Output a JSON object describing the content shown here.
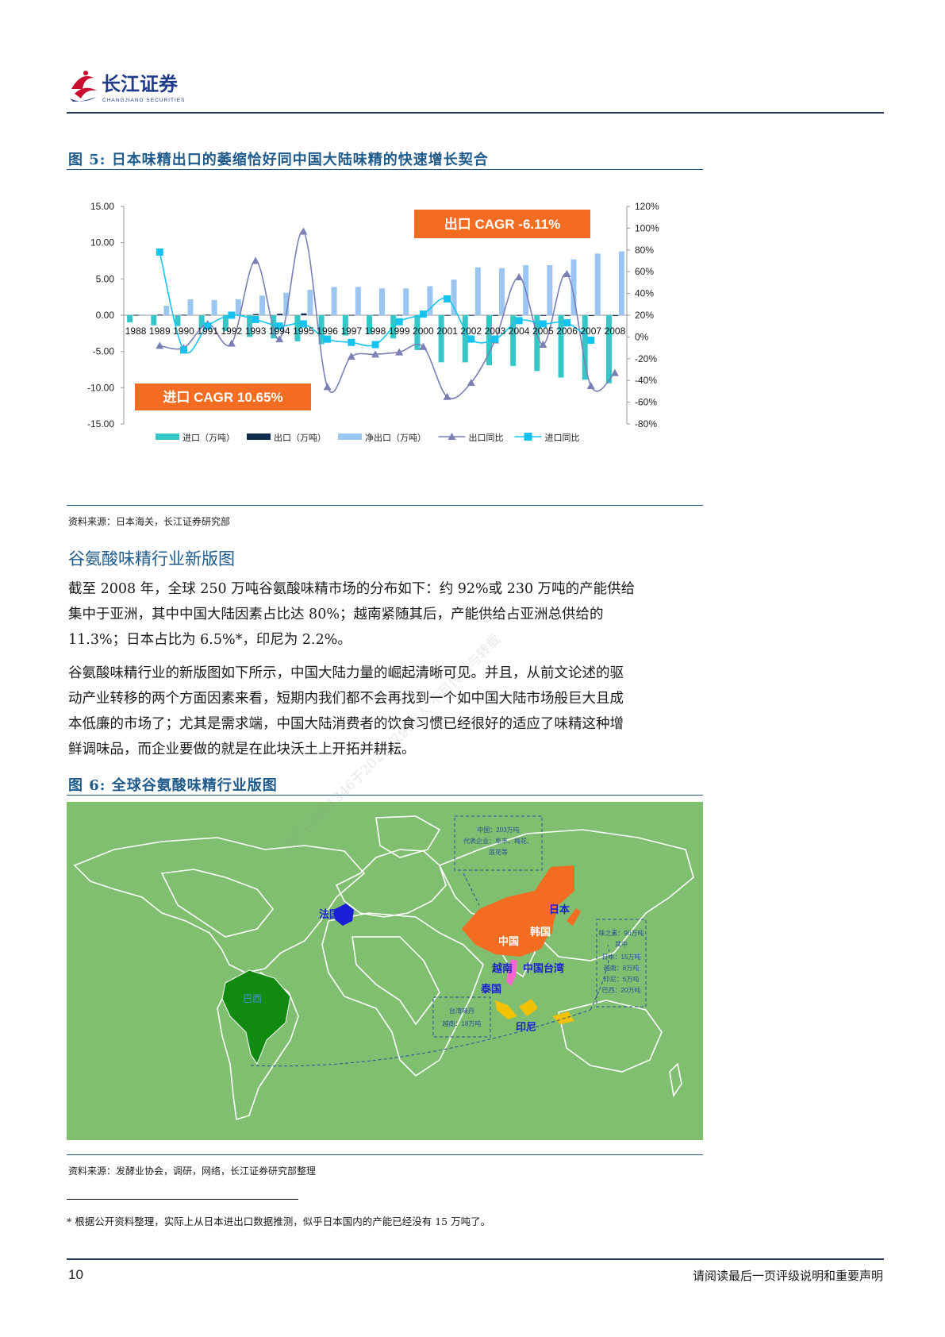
{
  "header": {
    "brand_cn": "长江证券",
    "brand_en": "CHANGJIANG SECURITIES"
  },
  "figure5": {
    "title": "图 5:  日本味精出口的萎缩恰好同中国大陆味精的快速增长契合",
    "source": "资料来源：日本海关，长江证券研究部",
    "export_callout": "出口 CAGR -6.11%",
    "import_callout": "进口 CAGR 10.65%"
  },
  "chart_data": {
    "type": "bar",
    "categories": [
      "1988",
      "1989",
      "1990",
      "1991",
      "1992",
      "1993",
      "1994",
      "1995",
      "1996",
      "1997",
      "1998",
      "1999",
      "2000",
      "2001",
      "2002",
      "2003",
      "2004",
      "2005",
      "2006",
      "2007",
      "2008"
    ],
    "series": [
      {
        "name": "进口（万吨）",
        "type": "bar",
        "axis": "left",
        "color": "#35c6c8",
        "values": [
          -1.0,
          -1.4,
          -1.5,
          -1.7,
          -2.2,
          -3.0,
          -3.2,
          -3.6,
          -4.0,
          -2.8,
          -2.6,
          -3.2,
          -4.8,
          -6.5,
          -6.5,
          -6.9,
          -7.0,
          -7.7,
          -8.6,
          -8.9,
          -9.4
        ]
      },
      {
        "name": "出口（万吨）",
        "type": "bar",
        "axis": "left",
        "color": "#0f2a4d",
        "values": [
          0.05,
          0.08,
          0.07,
          0.08,
          0.1,
          0.15,
          0.2,
          0.25,
          0.06,
          0.05,
          0.05,
          0.05,
          0.04,
          0.03,
          0.03,
          0.02,
          0.03,
          0.02,
          0.01,
          0.01,
          0.01
        ]
      },
      {
        "name": "净出口（万吨）",
        "type": "bar",
        "axis": "left",
        "color": "#9cc6f2",
        "values": [
          0.1,
          1.3,
          2.2,
          2.1,
          2.2,
          2.7,
          3.1,
          3.5,
          3.9,
          3.9,
          3.7,
          3.7,
          4.0,
          4.9,
          6.6,
          6.5,
          6.9,
          6.9,
          7.7,
          8.5,
          8.8
        ]
      },
      {
        "name": "出口同比",
        "type": "line",
        "axis": "right",
        "color": "#7a7fb5",
        "marker": "triangle",
        "values": [
          null,
          -8,
          -10,
          12,
          -6,
          70,
          -2,
          97,
          -46,
          -18,
          -16,
          -14,
          -9,
          -55,
          -42,
          -3,
          55,
          -7,
          58,
          -45,
          -33
        ]
      },
      {
        "name": "进口同比",
        "type": "line",
        "axis": "right",
        "color": "#14c3ef",
        "marker": "square",
        "values": [
          null,
          78,
          -12,
          10,
          20,
          16,
          10,
          12,
          -2,
          -5,
          -7,
          14,
          21,
          35,
          -2,
          -2,
          15,
          12,
          13,
          -3,
          null
        ]
      }
    ],
    "y_left": {
      "ticks": [
        "15.00",
        "10.00",
        "5.00",
        "0.00",
        "-5.00",
        "-10.00",
        "-15.00"
      ],
      "min": -15,
      "max": 15
    },
    "y_right": {
      "ticks": [
        "120%",
        "100%",
        "80%",
        "60%",
        "40%",
        "20%",
        "0%",
        "-20%",
        "-40%",
        "-60%",
        "-80%"
      ],
      "min": -80,
      "max": 120
    },
    "legend": [
      {
        "label": "进口（万吨）",
        "color": "#35c6c8",
        "kind": "bar"
      },
      {
        "label": "出口（万吨）",
        "color": "#0f2a4d",
        "kind": "bar"
      },
      {
        "label": "净出口（万吨）",
        "color": "#9cc6f2",
        "kind": "bar"
      },
      {
        "label": "出口同比",
        "color": "#7a7fb5",
        "kind": "triangle"
      },
      {
        "label": "进口同比",
        "color": "#14c3ef",
        "kind": "square"
      }
    ],
    "legend_position": "bottom"
  },
  "section": {
    "title": "谷氨酸味精行业新版图",
    "para1_lines": [
      "截至 2008 年，全球 250 万吨谷氨酸味精市场的分布如下：约 92%或 230 万吨的产能供给",
      "集中于亚洲，其中中国大陆因素占比达 80%；越南紧随其后，产能供给占亚洲总供给的",
      "11.3%；日本占比为 6.5%*，印尼为 2.2%。"
    ],
    "para2_lines": [
      "谷氨酸味精行业的新版图如下所示，中国大陆力量的崛起清晰可见。并且，从前文论述的驱",
      "动产业转移的两个方面因素来看，短期内我们都不会再找到一个如中国大陆市场般巨大且成",
      "本低廉的市场了；尤其是需求端，中国大陆消费者的饮食习惯已经很好的适应了味精这种增",
      "鲜调味品，而企业要做的就是在此块沃土上开拓并耕耘。"
    ]
  },
  "figure6": {
    "title": "图 6:  全球谷氨酸味精行业版图",
    "source": "资料来源：发酵业协会，调研，网络，长江证券研究部整理",
    "labels": {
      "france": "法国",
      "brazil": "巴西",
      "china": "中国",
      "korea": "韩国",
      "japan": "日本",
      "vietnam": "越南",
      "taiwan": "中国台湾",
      "thailand": "泰国",
      "indonesia": "印尼"
    },
    "china_box_lines": [
      "中国：203万吨",
      "代表企业：阜丰、梅花、",
      "莲花等"
    ],
    "right_box_lines": [
      "味之素：90万吨",
      "其中",
      "日本：15万吨",
      "越南：8万吨",
      "印尼：5万吨",
      "巴西：20万吨"
    ],
    "taiwan_box_lines": [
      "台湾味丹",
      "越南：18万吨"
    ]
  },
  "footnote": "* 根据公开资料整理，实际上从日本进出口数据推测，似乎日本国内的产能已经没有 15 万吨了。",
  "footer": {
    "page_number": "10",
    "disclaimer": "请阅读最后一页评级说明和重要声明"
  },
  "watermark": "用户63651346于2020 仅供本人 不可传播与转载"
}
